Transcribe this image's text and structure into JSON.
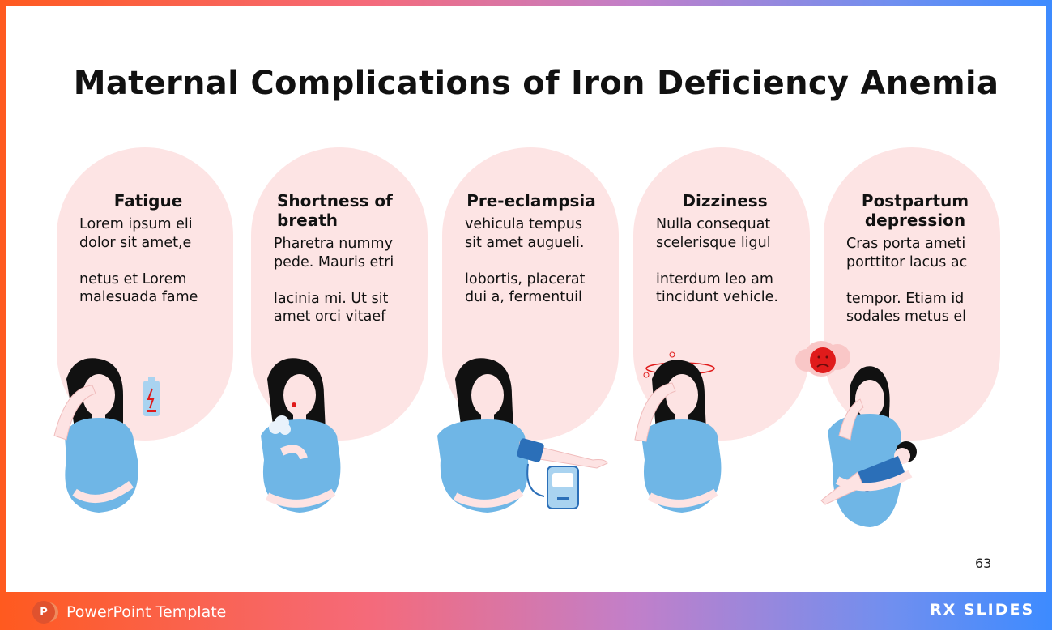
{
  "title": "Maternal Complications of Iron Deficiency Anemia",
  "cards": [
    {
      "title": "Fatigue",
      "body": "Lorem ipsum eli\ndolor sit amet,e\n\nnetus et Lorem\nmalesuada fame",
      "icon": "fatigue-battery-icon"
    },
    {
      "title": "Shortness of\nbreath",
      "body": "Pharetra nummy\npede. Mauris etri\n\nlacinia mi. Ut sit\namet orci vitaef",
      "icon": "breath-cloud-icon"
    },
    {
      "title": "Pre-eclampsia",
      "body": "vehicula tempus\nsit amet augueli.\n\nlobortis, placerat\ndui a, fermentuil",
      "icon": "blood-pressure-monitor-icon"
    },
    {
      "title": "Dizziness",
      "body": "Nulla consequat\nscelerisque ligul\n\ninterdum leo am\ntincidunt vehicle.",
      "icon": "dizzy-swirl-icon"
    },
    {
      "title": "Postpartum\ndepression",
      "body": "Cras porta ameti\nporttitor lacus ac\n\ntempor. Etiam id\nsodales metus el",
      "icon": "sad-face-cloud-icon"
    }
  ],
  "page_number": "63",
  "footer": {
    "template_label": "PowerPoint Template",
    "brand": "RX SLIDES",
    "ppt_icon_letter": "P"
  },
  "colors": {
    "card": "#fde4e4",
    "shirt": "#6fb6e6",
    "skin": "#fde3e3",
    "hair": "#111111",
    "accent": "#e01b1b"
  }
}
